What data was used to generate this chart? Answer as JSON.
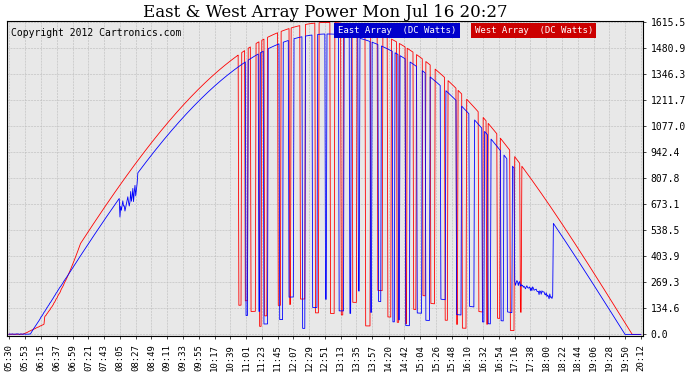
{
  "title": "East & West Array Power Mon Jul 16 20:27",
  "copyright": "Copyright 2012 Cartronics.com",
  "legend_east": "East Array  (DC Watts)",
  "legend_west": "West Array  (DC Watts)",
  "east_color": "#0000ff",
  "west_color": "#ff0000",
  "background_color": "#ffffff",
  "plot_bg_color": "#e8e8e8",
  "grid_color": "#bbbbbb",
  "ylim": [
    0.0,
    1615.5
  ],
  "yticks": [
    0.0,
    134.6,
    269.3,
    403.9,
    538.5,
    673.1,
    807.8,
    942.4,
    1077.0,
    1211.7,
    1346.3,
    1480.9,
    1615.5
  ],
  "ytick_labels": [
    "0.0",
    "134.6",
    "269.3",
    "403.9",
    "538.5",
    "673.1",
    "807.8",
    "942.4",
    "1077.0",
    "1211.7",
    "1346.3",
    "1480.9",
    "1615.5"
  ],
  "xtick_labels": [
    "05:30",
    "05:53",
    "06:15",
    "06:37",
    "06:59",
    "07:21",
    "07:43",
    "08:05",
    "08:27",
    "08:49",
    "09:11",
    "09:33",
    "09:55",
    "10:17",
    "10:39",
    "11:01",
    "11:23",
    "11:45",
    "12:07",
    "12:29",
    "12:51",
    "13:13",
    "13:35",
    "13:57",
    "14:20",
    "14:42",
    "15:04",
    "15:26",
    "15:48",
    "16:10",
    "16:32",
    "16:54",
    "17:16",
    "17:38",
    "18:00",
    "18:22",
    "18:44",
    "19:06",
    "19:28",
    "19:50",
    "20:12"
  ],
  "legend_east_bg": "#0000cc",
  "legend_west_bg": "#cc0000",
  "title_fontsize": 12,
  "tick_fontsize": 7,
  "copyright_fontsize": 7
}
